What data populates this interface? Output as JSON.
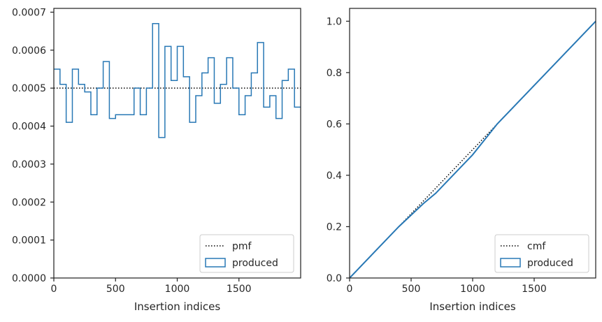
{
  "chart_data": [
    {
      "type": "step",
      "xlabel": "Insertion indices",
      "ylabel": "",
      "xlim": [
        0,
        2000
      ],
      "ylim": [
        0,
        0.00071
      ],
      "grid": false,
      "x_ticks": [
        0,
        500,
        1000,
        1500
      ],
      "x_tick_labels": [
        "0",
        "500",
        "1000",
        "1500"
      ],
      "y_ticks": [
        0,
        0.0001,
        0.0002,
        0.0003,
        0.0004,
        0.0005,
        0.0006,
        0.0007
      ],
      "y_tick_labels": [
        "0.0000",
        "0.0001",
        "0.0002",
        "0.0003",
        "0.0004",
        "0.0005",
        "0.0006",
        "0.0007"
      ],
      "legend_position": "lower-right",
      "series": [
        {
          "name": "pmf",
          "style": "dotted",
          "color": "#000000",
          "x": [
            0,
            2000
          ],
          "y": [
            0.0005,
            0.0005
          ]
        },
        {
          "name": "produced",
          "style": "step",
          "color": "#2878b5",
          "edges": [
            0,
            50,
            100,
            150,
            200,
            250,
            300,
            350,
            400,
            450,
            500,
            550,
            600,
            650,
            700,
            750,
            800,
            850,
            900,
            950,
            1000,
            1050,
            1100,
            1150,
            1200,
            1250,
            1300,
            1350,
            1400,
            1450,
            1500,
            1550,
            1600,
            1650,
            1700,
            1750,
            1800,
            1850,
            1900,
            1950,
            2000
          ],
          "values": [
            0.00055,
            0.00051,
            0.00041,
            0.00055,
            0.00051,
            0.00049,
            0.00043,
            0.0005,
            0.00057,
            0.00042,
            0.00043,
            0.00043,
            0.00043,
            0.0005,
            0.00043,
            0.0005,
            0.00067,
            0.00037,
            0.00061,
            0.00052,
            0.00061,
            0.00053,
            0.00041,
            0.00048,
            0.00054,
            0.00058,
            0.00046,
            0.00051,
            0.00058,
            0.0005,
            0.00043,
            0.00048,
            0.00054,
            0.00062,
            0.00045,
            0.00048,
            0.00042,
            0.00052,
            0.00055,
            0.00045
          ]
        }
      ]
    },
    {
      "type": "line",
      "xlabel": "Insertion indices",
      "ylabel": "",
      "xlim": [
        0,
        2000
      ],
      "ylim": [
        0,
        1.05
      ],
      "grid": false,
      "x_ticks": [
        0,
        500,
        1000,
        1500
      ],
      "x_tick_labels": [
        "0",
        "500",
        "1000",
        "1500"
      ],
      "y_ticks": [
        0,
        0.2,
        0.4,
        0.6,
        0.8,
        1.0
      ],
      "y_tick_labels": [
        "0.0",
        "0.2",
        "0.4",
        "0.6",
        "0.8",
        "1.0"
      ],
      "legend_position": "lower-right",
      "series": [
        {
          "name": "cmf",
          "style": "dotted",
          "color": "#000000",
          "x": [
            0,
            2000
          ],
          "y": [
            0,
            1.0
          ]
        },
        {
          "name": "produced",
          "style": "solid",
          "color": "#2878b5",
          "x": [
            0,
            200,
            400,
            600,
            700,
            800,
            900,
            1000,
            1100,
            1200,
            1300,
            1400,
            1500,
            1600,
            1700,
            1800,
            1900,
            2000
          ],
          "y": [
            0,
            0.1,
            0.2,
            0.29,
            0.33,
            0.38,
            0.43,
            0.48,
            0.54,
            0.6,
            0.65,
            0.7,
            0.75,
            0.8,
            0.85,
            0.9,
            0.95,
            1.0
          ]
        }
      ]
    }
  ]
}
